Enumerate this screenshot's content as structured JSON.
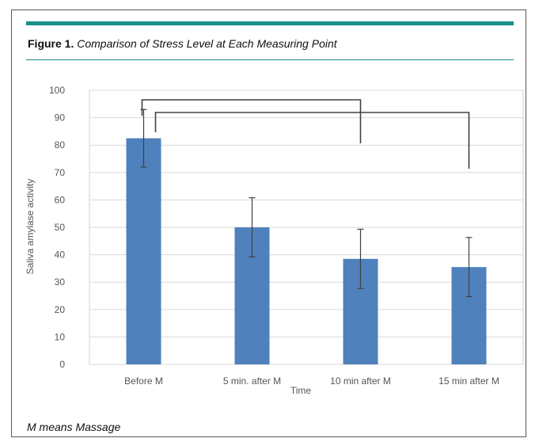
{
  "figure": {
    "label": "Figure 1.",
    "title": "Comparison of Stress Level at Each Measuring Point",
    "footnote": "M means Massage"
  },
  "colors": {
    "bar": "#4f81bd",
    "accent_rule": "#1a8f8c",
    "grid": "#d9d9d9",
    "error_bar": "#404040"
  },
  "chart_data": {
    "type": "bar",
    "categories": [
      "Before M",
      "5 min. after M",
      "10 min after M",
      "15 min after M"
    ],
    "values": [
      82.5,
      50,
      38.5,
      35.5
    ],
    "error": [
      10.5,
      10.8,
      10.8,
      10.8
    ],
    "xlabel": "Time",
    "ylabel": "Saliva amylase activity",
    "ylim": [
      0,
      100
    ],
    "yticks": [
      0,
      10,
      20,
      30,
      40,
      50,
      60,
      70,
      80,
      90,
      100
    ],
    "grid": true,
    "significance_brackets": [
      {
        "from": "Before M",
        "to": "10 min after M"
      },
      {
        "from": "Before M",
        "to": "15 min after M"
      }
    ]
  }
}
